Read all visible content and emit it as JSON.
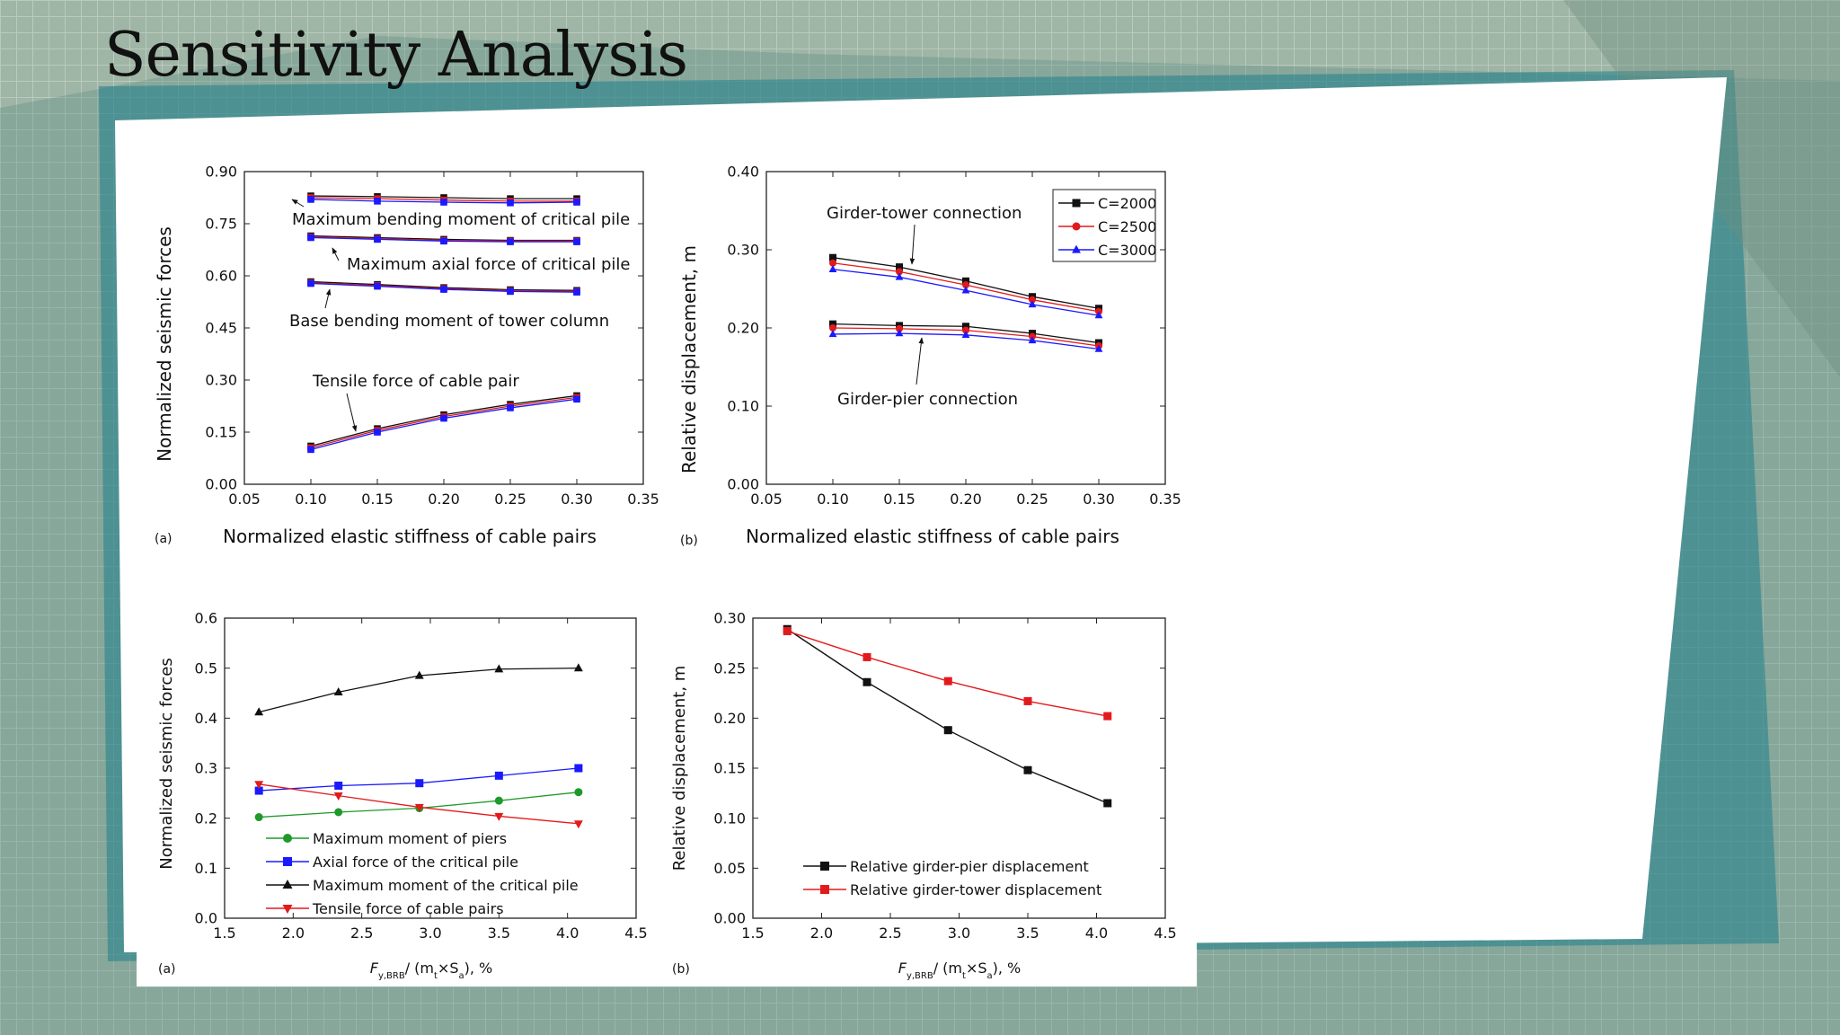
{
  "slide": {
    "title": "Sensitivity Analysis"
  },
  "colors": {
    "black": "#111111",
    "red": "#e31a1c",
    "blue": "#1a1aff",
    "green": "#1f9a2a",
    "purple": "#7a1fa0"
  },
  "charts": {
    "a1": {
      "panel_label": "(a)",
      "chart_data": {
        "type": "line",
        "x_ticks": [
          "0.05",
          "0.10",
          "0.15",
          "0.20",
          "0.25",
          "0.30",
          "0.35"
        ],
        "y_ticks": [
          "0.00",
          "0.15",
          "0.30",
          "0.45",
          "0.60",
          "0.75",
          "0.90"
        ],
        "xlim": [
          0.05,
          0.35
        ],
        "ylim": [
          0,
          0.9
        ],
        "xlabel": "Normalized elastic stiffness of cable pairs",
        "ylabel": "Normalized seismic forces",
        "x": [
          0.1,
          0.15,
          0.2,
          0.25,
          0.3
        ],
        "groups": [
          {
            "name": "Maximum bending moment of critical pile",
            "series": [
              [
                0.83,
                0.828,
                0.825,
                0.822,
                0.822
              ],
              [
                0.825,
                0.822,
                0.818,
                0.815,
                0.815
              ],
              [
                0.82,
                0.815,
                0.812,
                0.81,
                0.812
              ]
            ]
          },
          {
            "name": "Maximum axial force of critical pile",
            "series": [
              [
                0.715,
                0.71,
                0.705,
                0.702,
                0.702
              ],
              [
                0.712,
                0.707,
                0.702,
                0.7,
                0.7
              ],
              [
                0.71,
                0.705,
                0.7,
                0.698,
                0.698
              ]
            ]
          },
          {
            "name": "Base bending moment of tower column",
            "series": [
              [
                0.583,
                0.575,
                0.566,
                0.56,
                0.558
              ],
              [
                0.58,
                0.572,
                0.563,
                0.557,
                0.555
              ],
              [
                0.578,
                0.57,
                0.561,
                0.555,
                0.553
              ]
            ]
          },
          {
            "name": "Tensile force of cable pair",
            "series": [
              [
                0.11,
                0.16,
                0.2,
                0.23,
                0.255
              ],
              [
                0.105,
                0.155,
                0.195,
                0.225,
                0.25
              ],
              [
                0.1,
                0.15,
                0.19,
                0.22,
                0.245
              ]
            ]
          }
        ],
        "annotations": [
          "Maximum bending moment of critical pile",
          "Maximum axial force of critical pile",
          "Base bending moment of tower column",
          "Tensile force of cable pair"
        ]
      }
    },
    "b1": {
      "panel_label": "(b)",
      "chart_data": {
        "type": "line",
        "x_ticks": [
          "0.05",
          "0.10",
          "0.15",
          "0.20",
          "0.25",
          "0.30",
          "0.35"
        ],
        "y_ticks": [
          "0.00",
          "0.10",
          "0.20",
          "0.30",
          "0.40"
        ],
        "xlim": [
          0.05,
          0.35
        ],
        "ylim": [
          0,
          0.4
        ],
        "xlabel": "Normalized elastic stiffness of cable pairs",
        "ylabel": "Relative displacement, m",
        "x": [
          0.1,
          0.15,
          0.2,
          0.25,
          0.3
        ],
        "legend": [
          "C=2000",
          "C=2500",
          "C=3000"
        ],
        "groups": [
          {
            "name": "Girder-tower connection",
            "series": [
              [
                0.29,
                0.278,
                0.26,
                0.24,
                0.225
              ],
              [
                0.283,
                0.272,
                0.255,
                0.236,
                0.221
              ],
              [
                0.275,
                0.265,
                0.248,
                0.23,
                0.216
              ]
            ]
          },
          {
            "name": "Girder-pier connection",
            "series": [
              [
                0.205,
                0.203,
                0.202,
                0.193,
                0.181
              ],
              [
                0.2,
                0.199,
                0.197,
                0.189,
                0.177
              ],
              [
                0.192,
                0.193,
                0.191,
                0.184,
                0.173
              ]
            ]
          }
        ],
        "annotations": [
          "Girder-tower connection",
          "Girder-pier connection"
        ]
      }
    },
    "a2": {
      "panel_label": "(a)",
      "chart_data": {
        "type": "line",
        "x_ticks": [
          "1.5",
          "2.0",
          "2.5",
          "3.0",
          "3.5",
          "4.0",
          "4.5"
        ],
        "y_ticks": [
          "0.0",
          "0.1",
          "0.2",
          "0.3",
          "0.4",
          "0.5",
          "0.6"
        ],
        "xlim": [
          1.5,
          4.5
        ],
        "ylim": [
          0,
          0.6
        ],
        "xlabel_main": "F",
        "xlabel_sub1": "y,BRB",
        "xlabel_mid": "/ (m",
        "xlabel_sub2": "t",
        "xlabel_mid2": "×S",
        "xlabel_sub3": "a",
        "xlabel_end": "), %",
        "ylabel": "Normalized seismic forces",
        "x": [
          1.75,
          2.33,
          2.92,
          3.5,
          4.08
        ],
        "series": [
          {
            "name": "Maximum moment of piers",
            "values": [
              0.202,
              0.212,
              0.22,
              0.235,
              0.252
            ]
          },
          {
            "name": "Axial force of the critical pile",
            "values": [
              0.255,
              0.265,
              0.27,
              0.285,
              0.3
            ]
          },
          {
            "name": "Maximum moment of the critical pile",
            "values": [
              0.412,
              0.452,
              0.485,
              0.498,
              0.5
            ]
          },
          {
            "name": "Tensile force of cable pairs",
            "values": [
              0.268,
              0.245,
              0.222,
              0.204,
              0.189
            ]
          }
        ]
      }
    },
    "b2": {
      "panel_label": "(b)",
      "chart_data": {
        "type": "line",
        "x_ticks": [
          "1.5",
          "2.0",
          "2.5",
          "3.0",
          "3.5",
          "4.0",
          "4.5"
        ],
        "y_ticks": [
          "0.00",
          "0.05",
          "0.10",
          "0.15",
          "0.20",
          "0.25",
          "0.30"
        ],
        "xlim": [
          1.5,
          4.5
        ],
        "ylim": [
          0,
          0.3
        ],
        "xlabel_main": "F",
        "xlabel_sub1": "y,BRB",
        "xlabel_mid": "/ (m",
        "xlabel_sub2": "t",
        "xlabel_mid2": "×S",
        "xlabel_sub3": "a",
        "xlabel_end": "), %",
        "ylabel": "Relative displacement, m",
        "x": [
          1.75,
          2.33,
          2.92,
          3.5,
          4.08
        ],
        "series": [
          {
            "name": "Relative girder-pier displacement",
            "values": [
              0.289,
              0.236,
              0.188,
              0.148,
              0.115
            ]
          },
          {
            "name": "Relative girder-tower displacement",
            "values": [
              0.287,
              0.261,
              0.237,
              0.217,
              0.202
            ]
          }
        ]
      }
    }
  }
}
